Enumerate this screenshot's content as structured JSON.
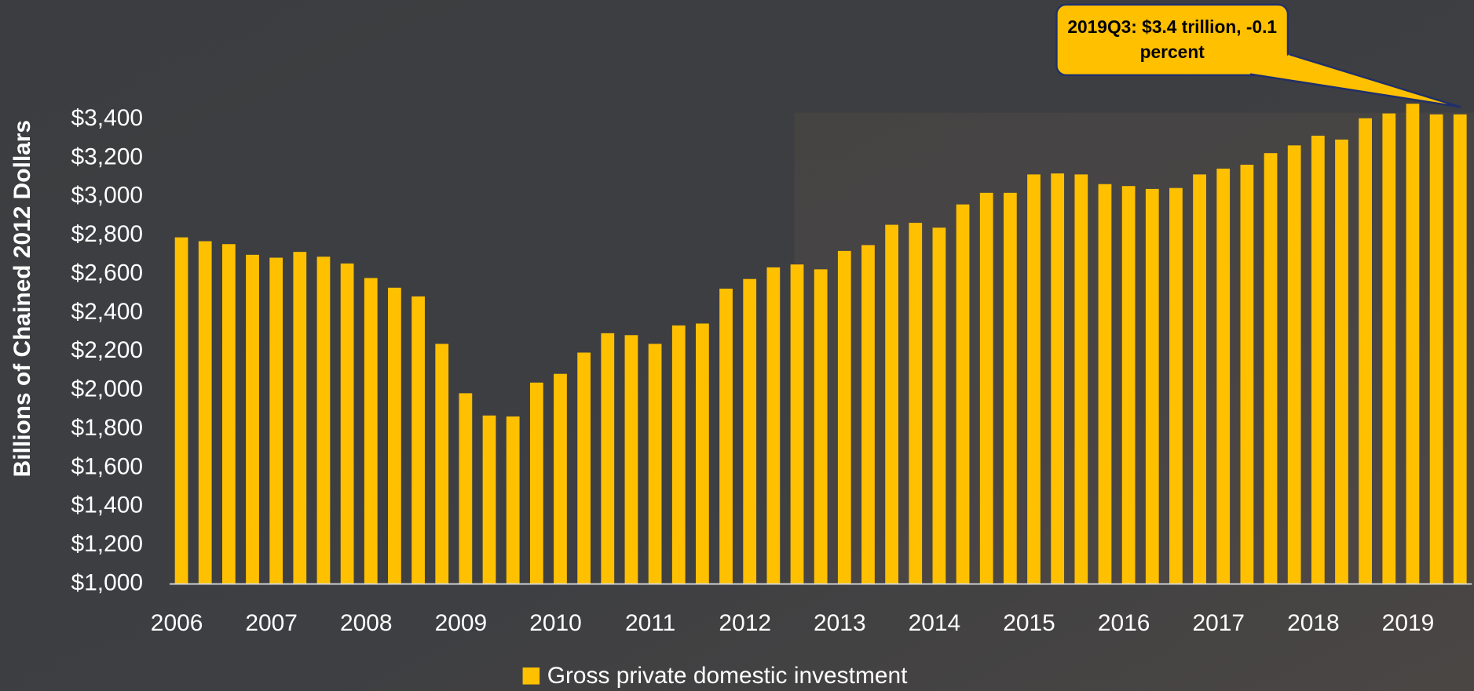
{
  "chart_data": {
    "type": "bar",
    "y_label": "Billions of Chained 2012 Dollars",
    "annotation": "2019Q3: $3.4 trillion, -0.1 percent",
    "categories": [
      "2006",
      null,
      null,
      null,
      "2007",
      null,
      null,
      null,
      "2008",
      null,
      null,
      null,
      "2009",
      null,
      null,
      null,
      "2010",
      null,
      null,
      null,
      "2011",
      null,
      null,
      null,
      "2012",
      null,
      null,
      null,
      "2013",
      null,
      null,
      null,
      "2014",
      null,
      null,
      null,
      "2015",
      null,
      null,
      null,
      "2016",
      null,
      null,
      null,
      "2017",
      null,
      null,
      null,
      "2018",
      null,
      null,
      null,
      "2019",
      null,
      null
    ],
    "series": [
      {
        "name": "Gross private domestic investment",
        "color": "#ffc000",
        "values": [
          2790,
          2770,
          2755,
          2700,
          2685,
          2715,
          2690,
          2655,
          2580,
          2530,
          2485,
          2240,
          1985,
          1870,
          1865,
          2040,
          2085,
          2195,
          2295,
          2285,
          2240,
          2335,
          2345,
          2525,
          2575,
          2635,
          2650,
          2625,
          2720,
          2750,
          2855,
          2865,
          2840,
          2960,
          3020,
          3020,
          3115,
          3120,
          3115,
          3065,
          3055,
          3040,
          3045,
          3115,
          3145,
          3165,
          3225,
          3265,
          3315,
          3295,
          3405,
          3430,
          3480,
          3425,
          3425
        ]
      }
    ],
    "ylim": [
      1000,
      3600
    ],
    "yticks": [
      {
        "value": 1000,
        "label": "$1,000"
      },
      {
        "value": 1200,
        "label": "$1,200"
      },
      {
        "value": 1400,
        "label": "$1,400"
      },
      {
        "value": 1600,
        "label": "$1,600"
      },
      {
        "value": 1800,
        "label": "$1,800"
      },
      {
        "value": 2000,
        "label": "$2,000"
      },
      {
        "value": 2200,
        "label": "$2,200"
      },
      {
        "value": 2400,
        "label": "$2,400"
      },
      {
        "value": 2600,
        "label": "$2,600"
      },
      {
        "value": 2800,
        "label": "$2,800"
      },
      {
        "value": 3000,
        "label": "$3,000"
      },
      {
        "value": 3200,
        "label": "$3,200"
      },
      {
        "value": 3400,
        "label": "$3,400"
      }
    ],
    "grid": false,
    "legend": "bottom"
  }
}
